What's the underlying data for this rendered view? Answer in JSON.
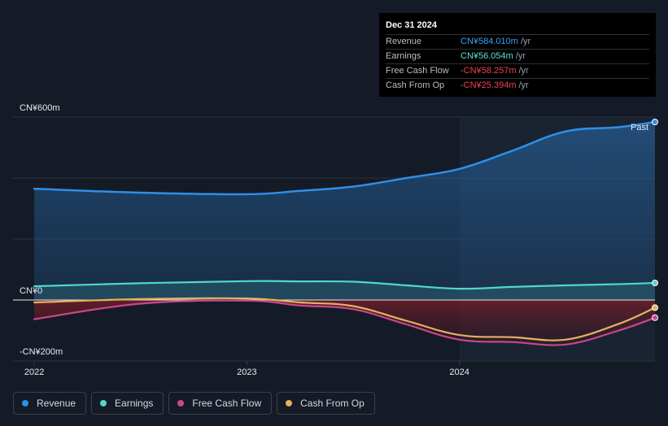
{
  "tooltip": {
    "date": "Dec 31 2024",
    "rows": [
      {
        "label": "Revenue",
        "value": "CN¥584.010m",
        "unit": "/yr",
        "color": "#3ba0f0"
      },
      {
        "label": "Earnings",
        "value": "CN¥56.054m",
        "unit": "/yr",
        "color": "#5ce0d2"
      },
      {
        "label": "Free Cash Flow",
        "value": "-CN¥58.257m",
        "unit": "/yr",
        "color": "#f0424d"
      },
      {
        "label": "Cash From Op",
        "value": "-CN¥25.394m",
        "unit": "/yr",
        "color": "#f0424d"
      }
    ]
  },
  "past_label": "Past",
  "legend": [
    {
      "label": "Revenue",
      "color": "#2f8fe8"
    },
    {
      "label": "Earnings",
      "color": "#4fd8c8"
    },
    {
      "label": "Free Cash Flow",
      "color": "#c9468a"
    },
    {
      "label": "Cash From Op",
      "color": "#e8b060"
    }
  ],
  "chart_data": {
    "type": "line",
    "y_ticks": [
      {
        "value": 600,
        "label": "CN¥600m"
      },
      {
        "value": 0,
        "label": "CN¥0"
      },
      {
        "value": -200,
        "label": "-CN¥200m"
      }
    ],
    "x_ticks": [
      {
        "value": 2022.0,
        "label": "2022"
      },
      {
        "value": 2023.0,
        "label": "2023"
      },
      {
        "value": 2024.0,
        "label": "2024"
      }
    ],
    "xlim": [
      2021.9,
      2024.92
    ],
    "ylim": [
      -200,
      600
    ],
    "past_start": 2024.0,
    "series": [
      {
        "name": "Revenue",
        "color": "#2f8fe8",
        "fill": "area",
        "x": [
          2022.0,
          2022.5,
          2023.0,
          2023.25,
          2023.5,
          2023.75,
          2024.0,
          2024.25,
          2024.5,
          2024.75,
          2024.92
        ],
        "y": [
          365,
          352,
          347,
          358,
          372,
          400,
          430,
          490,
          553,
          567,
          584
        ]
      },
      {
        "name": "Earnings",
        "color": "#4fd8c8",
        "fill": "area",
        "x": [
          2022.0,
          2022.5,
          2023.0,
          2023.25,
          2023.5,
          2023.75,
          2024.0,
          2024.25,
          2024.5,
          2024.75,
          2024.92
        ],
        "y": [
          45,
          55,
          62,
          61,
          60,
          48,
          37,
          43,
          48,
          52,
          56
        ]
      },
      {
        "name": "Free Cash Flow",
        "color": "#c9468a",
        "fill": "negative",
        "x": [
          2022.0,
          2022.5,
          2023.0,
          2023.25,
          2023.5,
          2023.75,
          2024.0,
          2024.25,
          2024.5,
          2024.75,
          2024.92
        ],
        "y": [
          -63,
          -12,
          -2,
          -18,
          -30,
          -80,
          -130,
          -138,
          -146,
          -100,
          -58
        ]
      },
      {
        "name": "Cash From Op",
        "color": "#e8b060",
        "fill": "none",
        "x": [
          2022.0,
          2022.5,
          2023.0,
          2023.25,
          2023.5,
          2023.75,
          2024.0,
          2024.25,
          2024.5,
          2024.75,
          2024.92
        ],
        "y": [
          -8,
          3,
          5,
          -8,
          -20,
          -68,
          -115,
          -122,
          -130,
          -78,
          -25
        ]
      }
    ]
  }
}
